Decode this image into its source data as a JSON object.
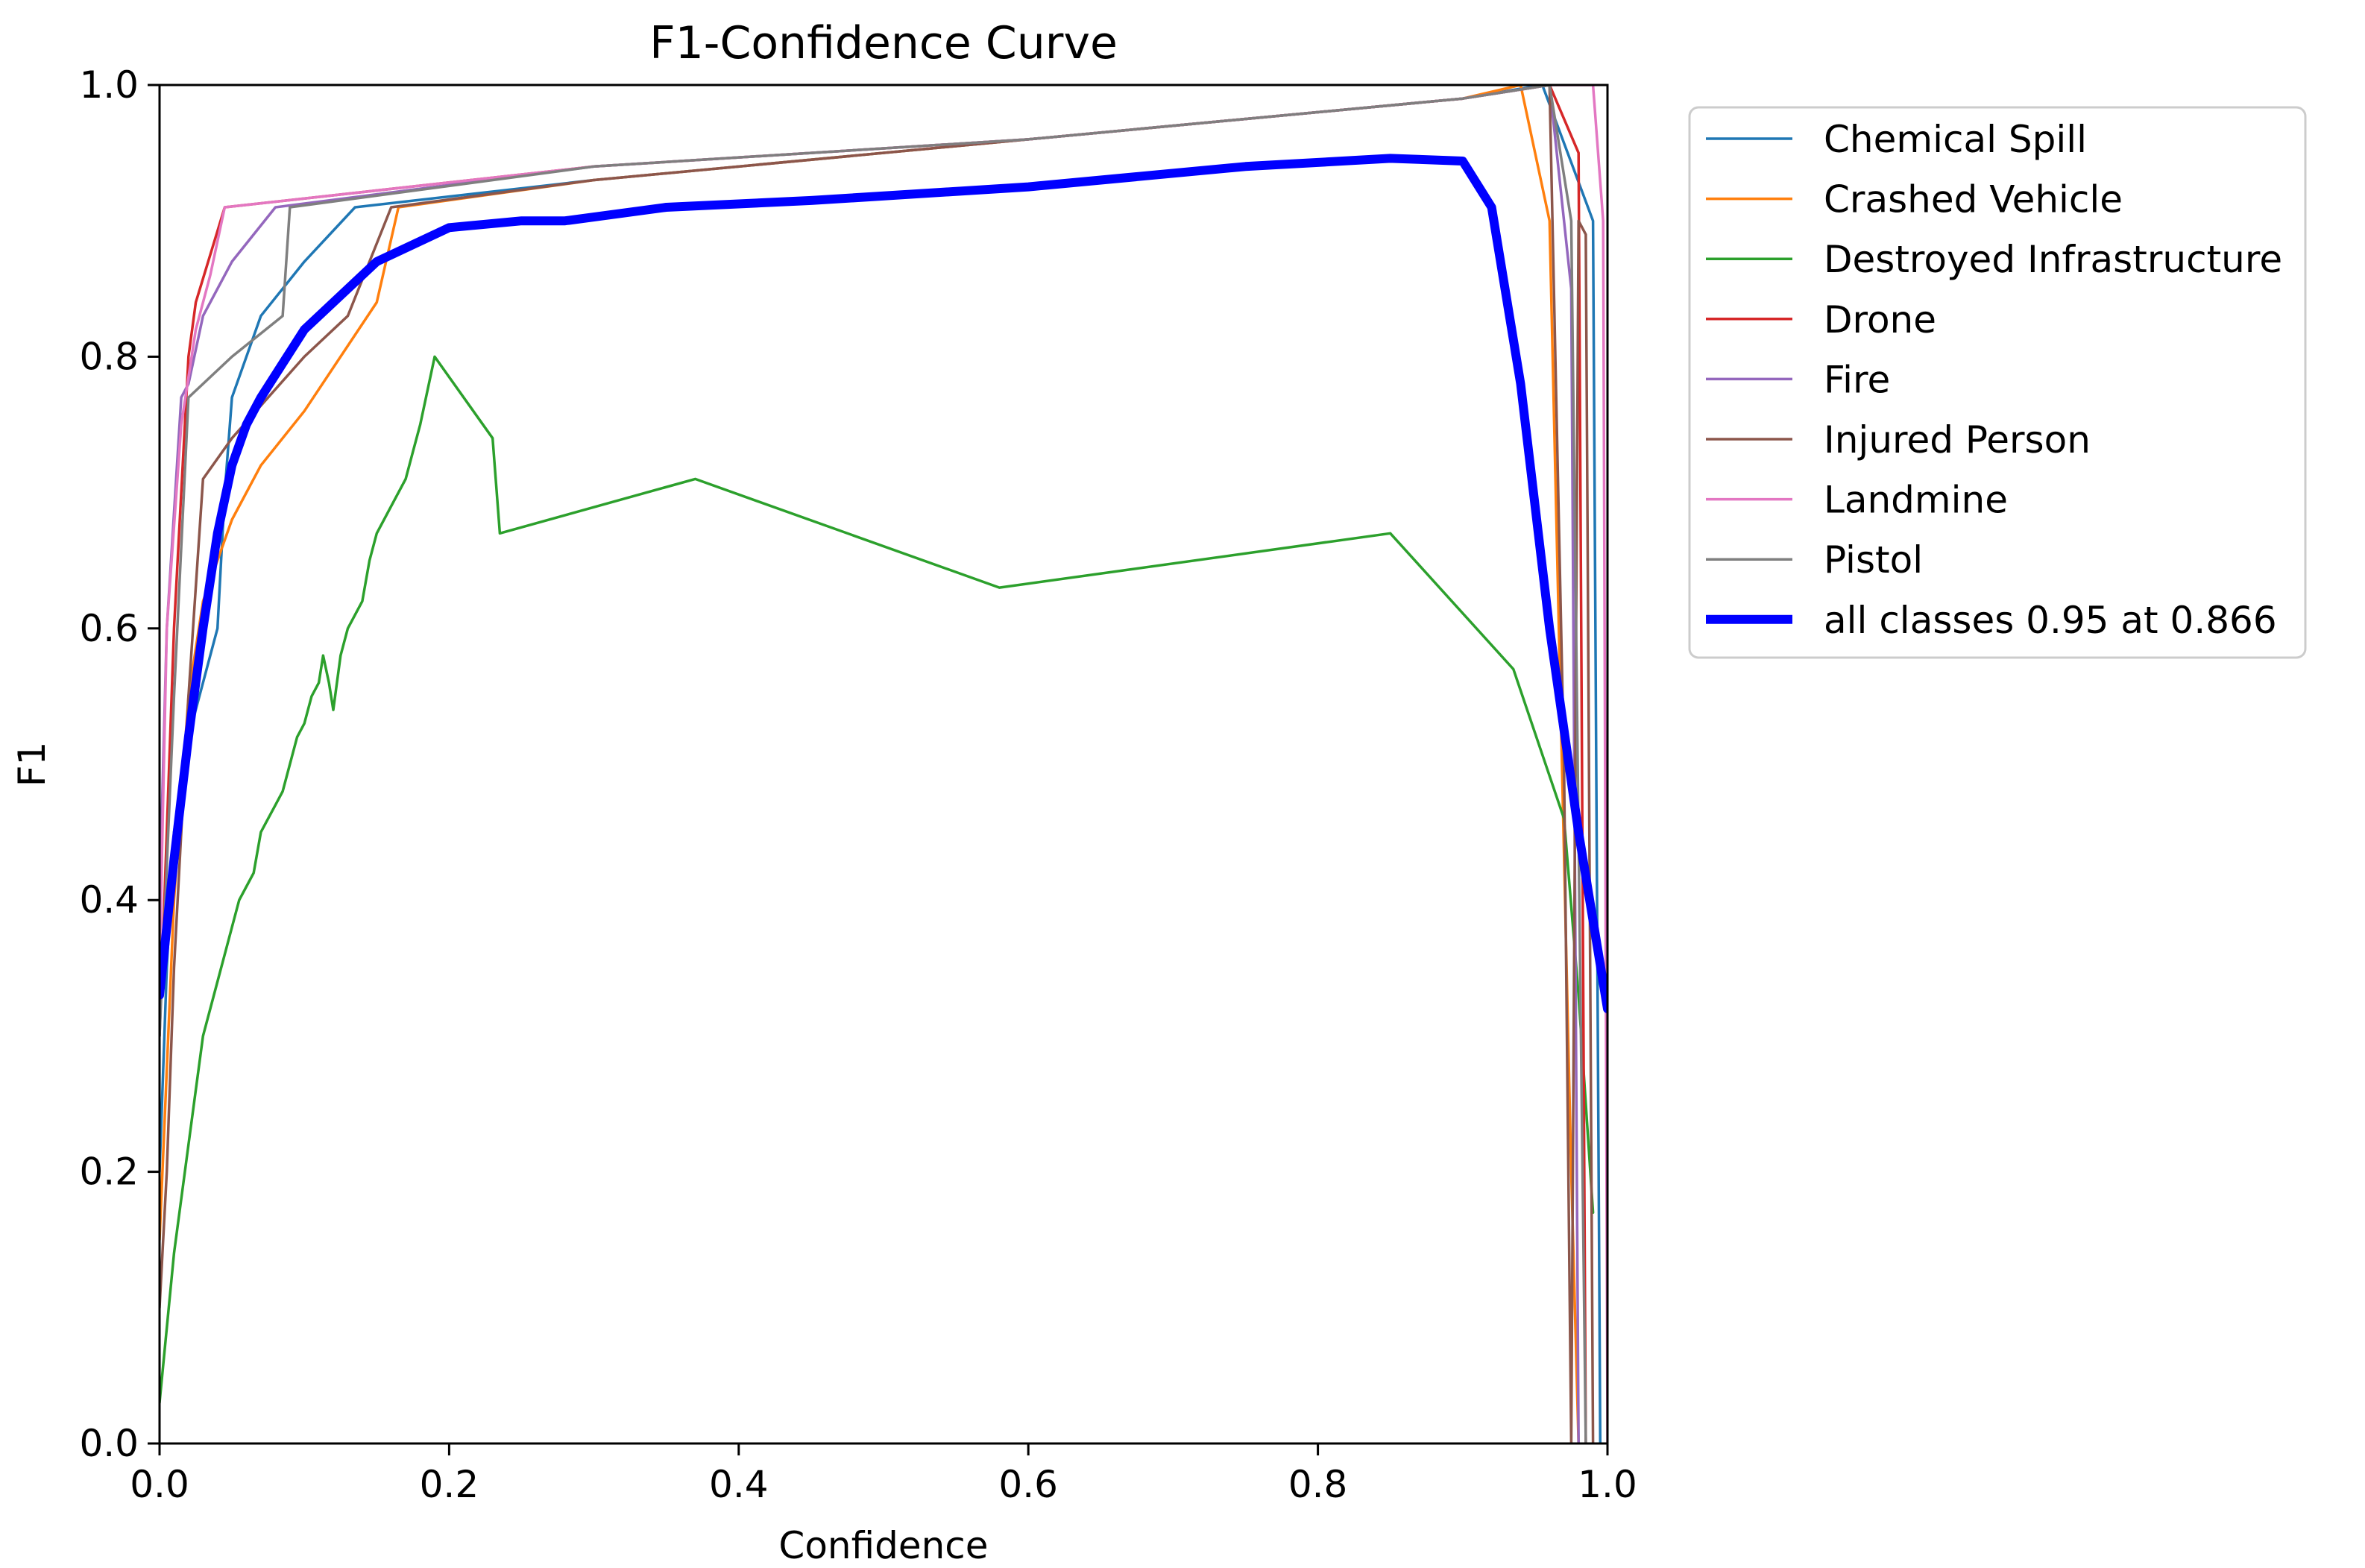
{
  "chart_data": {
    "type": "line",
    "title": "F1-Confidence Curve",
    "xlabel": "Confidence",
    "ylabel": "F1",
    "xlim": [
      0,
      1
    ],
    "ylim": [
      0,
      1
    ],
    "grid": false,
    "legend_position": "outside-right",
    "x_ticks": [
      "0.0",
      "0.2",
      "0.4",
      "0.6",
      "0.8",
      "1.0"
    ],
    "y_ticks": [
      "0.0",
      "0.2",
      "0.4",
      "0.6",
      "0.8",
      "1.0"
    ],
    "series": [
      {
        "name": "Chemical Spill",
        "color": "#1f77b4",
        "x": [
          0.0,
          0.005,
          0.01,
          0.02,
          0.04,
          0.045,
          0.05,
          0.07,
          0.1,
          0.135,
          0.3,
          0.6,
          0.9,
          0.955,
          0.99,
          0.995
        ],
        "y": [
          0.2,
          0.35,
          0.45,
          0.52,
          0.6,
          0.7,
          0.77,
          0.83,
          0.87,
          0.91,
          0.93,
          0.96,
          0.99,
          1.0,
          0.9,
          0.0
        ]
      },
      {
        "name": "Crashed Vehicle",
        "color": "#ff7f0e",
        "x": [
          0.0,
          0.01,
          0.02,
          0.03,
          0.05,
          0.07,
          0.1,
          0.15,
          0.165,
          0.3,
          0.6,
          0.9,
          0.94,
          0.96,
          0.975,
          0.98
        ],
        "y": [
          0.15,
          0.4,
          0.55,
          0.62,
          0.68,
          0.72,
          0.76,
          0.84,
          0.91,
          0.93,
          0.96,
          0.99,
          1.0,
          0.9,
          0.2,
          0.0
        ]
      },
      {
        "name": "Destroyed Infrastructure",
        "color": "#2ca02c",
        "x": [
          0.0,
          0.01,
          0.02,
          0.03,
          0.035,
          0.04,
          0.045,
          0.05,
          0.055,
          0.06,
          0.065,
          0.07,
          0.075,
          0.08,
          0.085,
          0.09,
          0.095,
          0.1,
          0.105,
          0.11,
          0.113,
          0.117,
          0.12,
          0.125,
          0.13,
          0.14,
          0.145,
          0.15,
          0.16,
          0.17,
          0.175,
          0.18,
          0.19,
          0.23,
          0.235,
          0.37,
          0.58,
          0.85,
          0.935,
          0.97,
          0.98,
          0.99
        ],
        "y": [
          0.03,
          0.14,
          0.22,
          0.3,
          0.32,
          0.34,
          0.36,
          0.38,
          0.4,
          0.41,
          0.42,
          0.45,
          0.46,
          0.47,
          0.48,
          0.5,
          0.52,
          0.53,
          0.55,
          0.56,
          0.58,
          0.56,
          0.54,
          0.58,
          0.6,
          0.62,
          0.65,
          0.67,
          0.69,
          0.71,
          0.73,
          0.75,
          0.8,
          0.74,
          0.67,
          0.71,
          0.63,
          0.67,
          0.57,
          0.46,
          0.33,
          0.17
        ]
      },
      {
        "name": "Drone",
        "color": "#d62728",
        "x": [
          0.0,
          0.01,
          0.02,
          0.025,
          0.045,
          0.3,
          0.6,
          0.9,
          0.96,
          0.98,
          0.985
        ],
        "y": [
          0.3,
          0.6,
          0.8,
          0.84,
          0.91,
          0.94,
          0.96,
          0.99,
          1.0,
          0.95,
          0.0
        ]
      },
      {
        "name": "Fire",
        "color": "#9467bd",
        "x": [
          0.0,
          0.005,
          0.015,
          0.02,
          0.03,
          0.05,
          0.08,
          0.3,
          0.6,
          0.9,
          0.96,
          0.975,
          0.98
        ],
        "y": [
          0.4,
          0.6,
          0.77,
          0.78,
          0.83,
          0.87,
          0.91,
          0.94,
          0.96,
          0.99,
          1.0,
          0.85,
          0.0
        ]
      },
      {
        "name": "Injured Person",
        "color": "#8c564b",
        "x": [
          0.0,
          0.005,
          0.01,
          0.02,
          0.03,
          0.05,
          0.1,
          0.13,
          0.16,
          0.3,
          0.6,
          0.9,
          0.96,
          0.97,
          0.975,
          0.98,
          0.985,
          0.99
        ],
        "y": [
          0.1,
          0.2,
          0.35,
          0.55,
          0.71,
          0.74,
          0.8,
          0.83,
          0.91,
          0.93,
          0.96,
          0.99,
          1.0,
          0.5,
          0.0,
          0.9,
          0.89,
          0.0
        ]
      },
      {
        "name": "Landmine",
        "color": "#e377c2",
        "x": [
          0.0,
          0.005,
          0.015,
          0.025,
          0.035,
          0.045,
          0.3,
          0.6,
          0.9,
          0.96,
          0.99,
          0.997,
          1.0
        ],
        "y": [
          0.35,
          0.6,
          0.75,
          0.82,
          0.86,
          0.91,
          0.94,
          0.96,
          0.99,
          1.0,
          1.0,
          0.9,
          0.0
        ]
      },
      {
        "name": "Pistol",
        "color": "#7f7f7f",
        "x": [
          0.0,
          0.01,
          0.02,
          0.05,
          0.085,
          0.09,
          0.3,
          0.6,
          0.9,
          0.96,
          0.975,
          0.985
        ],
        "y": [
          0.3,
          0.55,
          0.77,
          0.8,
          0.83,
          0.91,
          0.94,
          0.96,
          0.99,
          1.0,
          0.9,
          0.0
        ]
      },
      {
        "name": "all classes 0.95 at 0.866",
        "color": "#0000ff",
        "bold": true,
        "x": [
          0.0,
          0.01,
          0.02,
          0.03,
          0.04,
          0.05,
          0.06,
          0.07,
          0.1,
          0.15,
          0.2,
          0.25,
          0.28,
          0.35,
          0.45,
          0.6,
          0.75,
          0.85,
          0.9,
          0.92,
          0.94,
          0.96,
          0.98,
          1.0
        ],
        "y": [
          0.33,
          0.43,
          0.52,
          0.6,
          0.67,
          0.72,
          0.75,
          0.77,
          0.82,
          0.87,
          0.895,
          0.9,
          0.9,
          0.91,
          0.915,
          0.925,
          0.94,
          0.946,
          0.944,
          0.91,
          0.78,
          0.6,
          0.45,
          0.32
        ]
      }
    ]
  }
}
